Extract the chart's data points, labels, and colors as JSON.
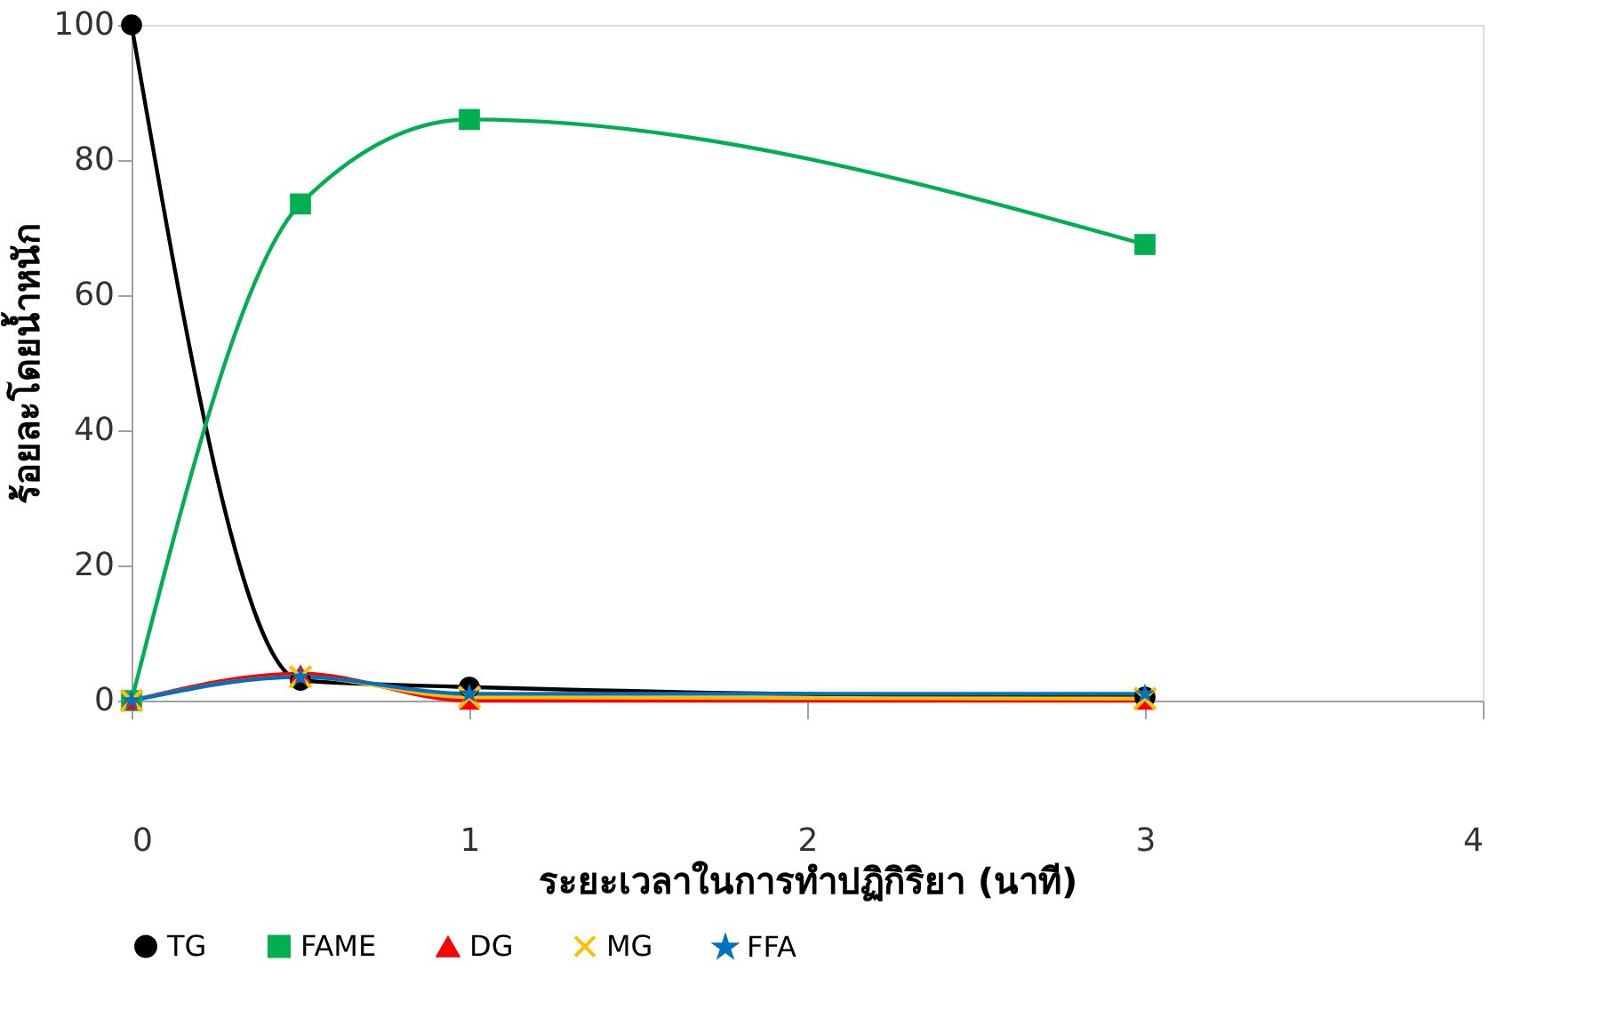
{
  "chart_data": {
    "type": "line",
    "xlabel": "ระยะเวลาในการทำปฏิกิริยา (นาที)",
    "ylabel": "ร้อยละโดยน้ำหนัก",
    "x": [
      0,
      0.5,
      1,
      3
    ],
    "series": [
      {
        "name": "TG",
        "color": "#000000",
        "marker": "circle",
        "values": [
          100,
          3,
          2,
          0.5
        ]
      },
      {
        "name": "FAME",
        "color": "#00b050",
        "marker": "square",
        "values": [
          0,
          73.5,
          86,
          67.5
        ]
      },
      {
        "name": "DG",
        "color": "#ff0000",
        "marker": "triangle",
        "values": [
          0,
          4,
          0,
          0
        ]
      },
      {
        "name": "MG",
        "color": "#ffc000",
        "marker": "cross",
        "values": [
          0,
          3.5,
          0.5,
          0.3
        ]
      },
      {
        "name": "FFA",
        "color": "#0070c0",
        "marker": "star",
        "values": [
          0,
          3.5,
          1,
          1
        ]
      }
    ],
    "xlim": [
      0,
      4
    ],
    "xticks": [
      0,
      1,
      2,
      3,
      4
    ],
    "ylim": [
      0,
      100
    ],
    "yticks": [
      0,
      20,
      40,
      60,
      80,
      100
    ],
    "grid": false,
    "legend": "bottom",
    "line_style": "solid"
  }
}
